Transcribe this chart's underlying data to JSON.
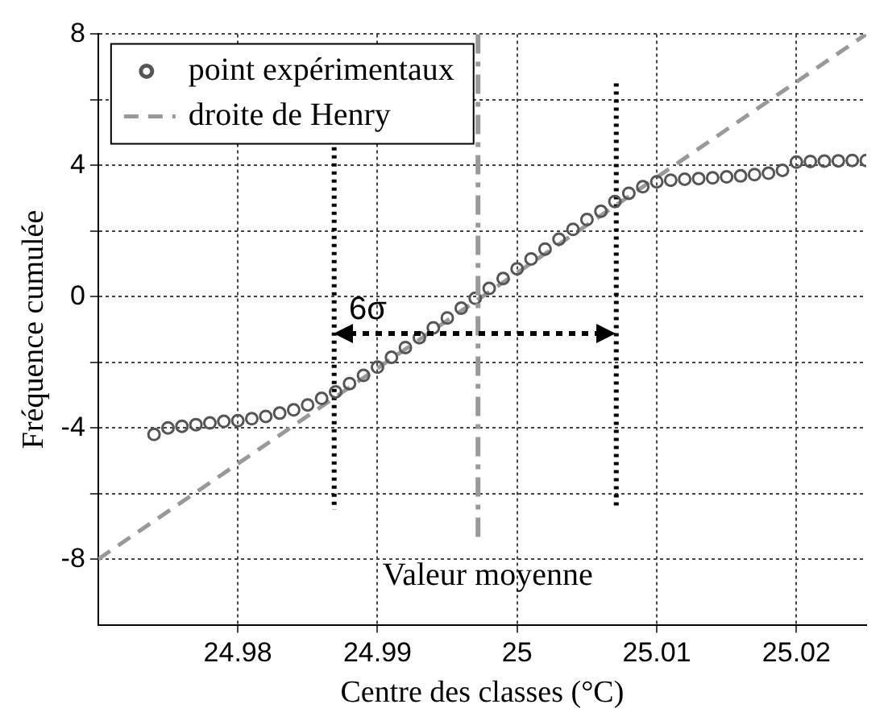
{
  "chart_data": {
    "type": "scatter",
    "xlabel": "Centre des classes (°C)",
    "ylabel": "Fréquence cumulée",
    "xlim": [
      24.97,
      25.025
    ],
    "xticks": [
      24.98,
      24.99,
      25,
      25.01,
      25.02
    ],
    "ylim": [
      -10,
      8
    ],
    "yticks": [
      -8,
      {
        "value": -6,
        "label": null
      },
      -4,
      {
        "value": -2,
        "label": null
      },
      0,
      {
        "value": 2,
        "label": null
      },
      4,
      {
        "value": 6,
        "label": null
      },
      8
    ],
    "grid": true,
    "legend": "top left",
    "series": [
      {
        "name": "point expérimentaux",
        "marker": "circle",
        "color": "#555555",
        "x": [
          24.974,
          24.975,
          24.976,
          24.977,
          24.978,
          24.979,
          24.98,
          24.981,
          24.982,
          24.983,
          24.984,
          24.985,
          24.986,
          24.987,
          24.988,
          24.989,
          24.99,
          24.991,
          24.992,
          24.993,
          24.994,
          24.995,
          24.996,
          24.997,
          24.998,
          24.999,
          25,
          25.001,
          25.002,
          25.003,
          25.004,
          25.005,
          25.006,
          25.007,
          25.008,
          25.009,
          25.01,
          25.011,
          25.012,
          25.013,
          25.014,
          25.015,
          25.016,
          25.017,
          25.018,
          25.019,
          25.02,
          25.021,
          25.022,
          25.023,
          25.024,
          25.025
        ],
        "values": [
          -4.2,
          -4.0,
          -3.95,
          -3.9,
          -3.85,
          -3.8,
          -3.78,
          -3.72,
          -3.65,
          -3.55,
          -3.45,
          -3.3,
          -3.1,
          -2.9,
          -2.65,
          -2.4,
          -2.15,
          -1.85,
          -1.55,
          -1.25,
          -0.95,
          -0.65,
          -0.35,
          -0.05,
          0.25,
          0.55,
          0.85,
          1.15,
          1.45,
          1.75,
          2.05,
          2.35,
          2.6,
          2.9,
          3.15,
          3.35,
          3.5,
          3.55,
          3.58,
          3.6,
          3.62,
          3.65,
          3.68,
          3.72,
          3.76,
          3.85,
          4.1,
          4.12,
          4.13,
          4.14,
          4.15,
          4.15
        ]
      },
      {
        "name": "droite de Henry",
        "type": "line",
        "line_style": "dashed",
        "color": "#999999",
        "x": [
          24.97,
          25.025
        ],
        "values": [
          -8,
          8
        ]
      },
      {
        "type": "line",
        "line_style": "dotted",
        "color": "#000000",
        "x": [
          24.9869,
          24.9869
        ],
        "values": [
          4.8,
          -6.5
        ]
      },
      {
        "type": "line",
        "line_style": "dotted",
        "color": "#000000",
        "x": [
          25.0071,
          25.0071
        ],
        "values": [
          6.5,
          -6.5
        ]
      }
    ],
    "ref_lines": [
      {
        "axis": "x",
        "value": 24.9972,
        "label": "Valeur moyenne",
        "color": "#999999",
        "line_style": "dashed"
      }
    ],
    "annotations": [
      {
        "text": "6σ",
        "x": 24.9875,
        "y": -1.1
      }
    ]
  }
}
